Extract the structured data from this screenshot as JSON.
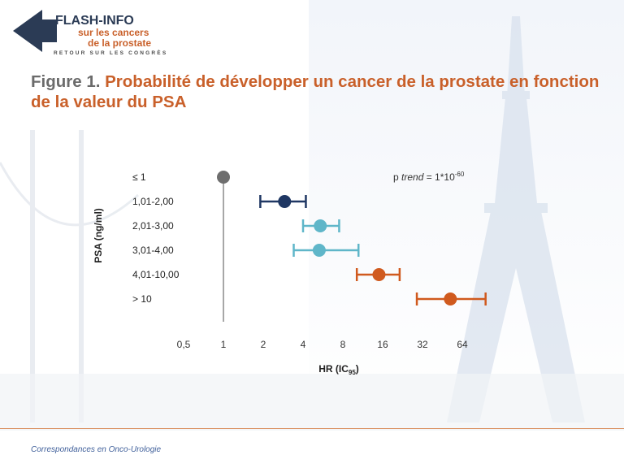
{
  "header": {
    "logo_flash": "FLASH-INFO",
    "logo_line1": "sur les cancers",
    "logo_line2": "de la prostate",
    "logo_tagline": "RETOUR SUR LES CONGRÈS"
  },
  "figure": {
    "label": "Figure 1.",
    "title": " Probabilité de développer un cancer de la prostate en fonction de la valeur du PSA"
  },
  "footer": {
    "text": "Correspondances en Onco-Urologie"
  },
  "colors": {
    "title_orange": "#c9602a",
    "ref_gray": "#6e6e6e",
    "navy": "#1f3763",
    "light_blue": "#5fb6c9",
    "orange": "#d05a1e"
  },
  "chart_data": {
    "type": "scatter",
    "subtype": "forest-plot",
    "xlabel": "HR (IC",
    "xlabel_sub": "95",
    "xlabel_end": ")",
    "ylabel": "PSA (ng/ml)",
    "x_scale": "log2",
    "xlim": [
      0.4,
      100
    ],
    "x_ticks": [
      0.5,
      1,
      2,
      4,
      8,
      16,
      32,
      64
    ],
    "x_tick_labels": [
      "0,5",
      "1",
      "2",
      "4",
      "8",
      "16",
      "32",
      "64"
    ],
    "reference_line": 1,
    "annotation": {
      "prefix": "p ",
      "italic": "trend",
      "suffix": " = 1*10",
      "sup": "-60"
    },
    "rows": [
      {
        "label": "≤ 1",
        "hr": 1.0,
        "lo": null,
        "hi": null,
        "color": "#6e6e6e"
      },
      {
        "label": "1,01-2,00",
        "hr": 2.9,
        "lo": 1.9,
        "hi": 4.2,
        "color": "#1f3763"
      },
      {
        "label": "2,01-3,00",
        "hr": 5.4,
        "lo": 4.0,
        "hi": 7.5,
        "color": "#5fb6c9"
      },
      {
        "label": "3,01-4,00",
        "hr": 5.3,
        "lo": 3.4,
        "hi": 10.5,
        "color": "#5fb6c9"
      },
      {
        "label": "4,01-10,00",
        "hr": 15.0,
        "lo": 10.2,
        "hi": 21.5,
        "color": "#d05a1e"
      },
      {
        "label": "> 10",
        "hr": 52.0,
        "lo": 29.0,
        "hi": 96.0,
        "color": "#d05a1e"
      }
    ]
  }
}
